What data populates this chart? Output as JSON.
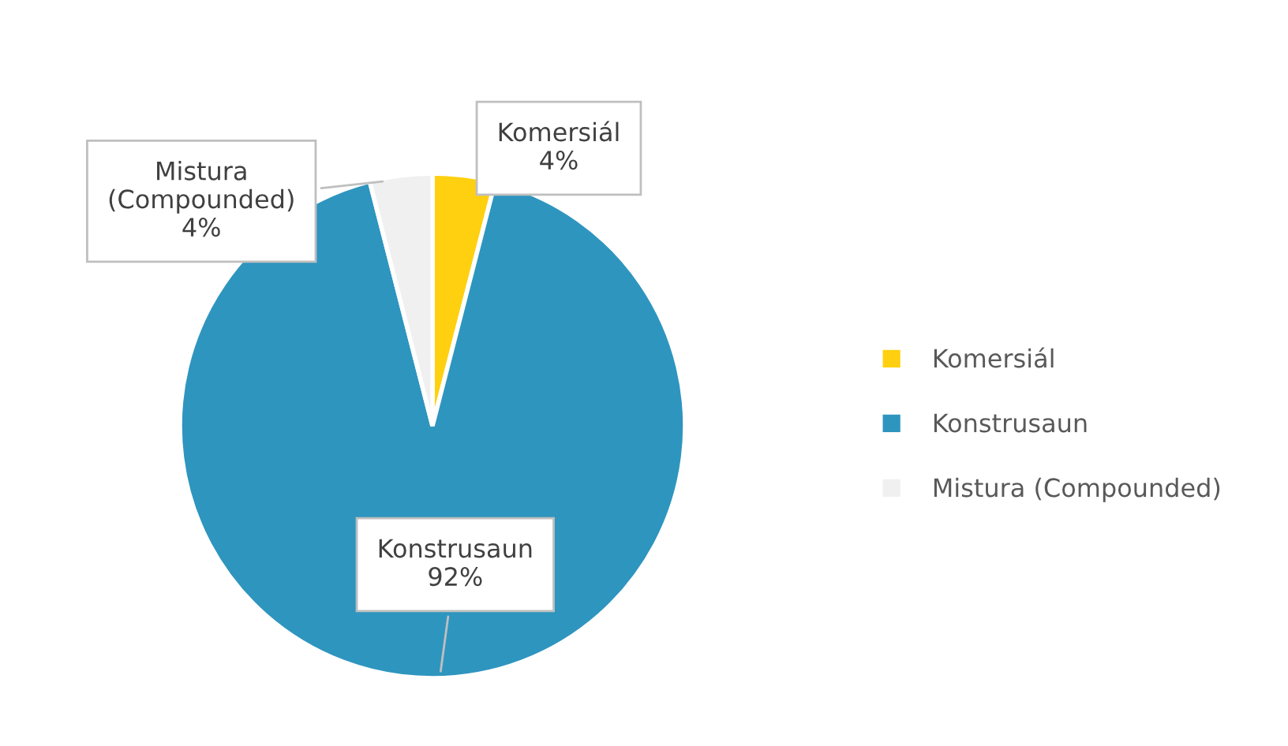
{
  "chart_data": {
    "type": "pie",
    "categories": [
      "Komersiál",
      "Konstrusaun",
      "Mistura (Compounded)"
    ],
    "values": [
      4,
      92,
      4
    ],
    "value_labels": [
      "4%",
      "92%",
      "4%"
    ],
    "colors": [
      "#ffd010",
      "#2e95bf",
      "#f0f0f0"
    ],
    "legend": "right"
  }
}
